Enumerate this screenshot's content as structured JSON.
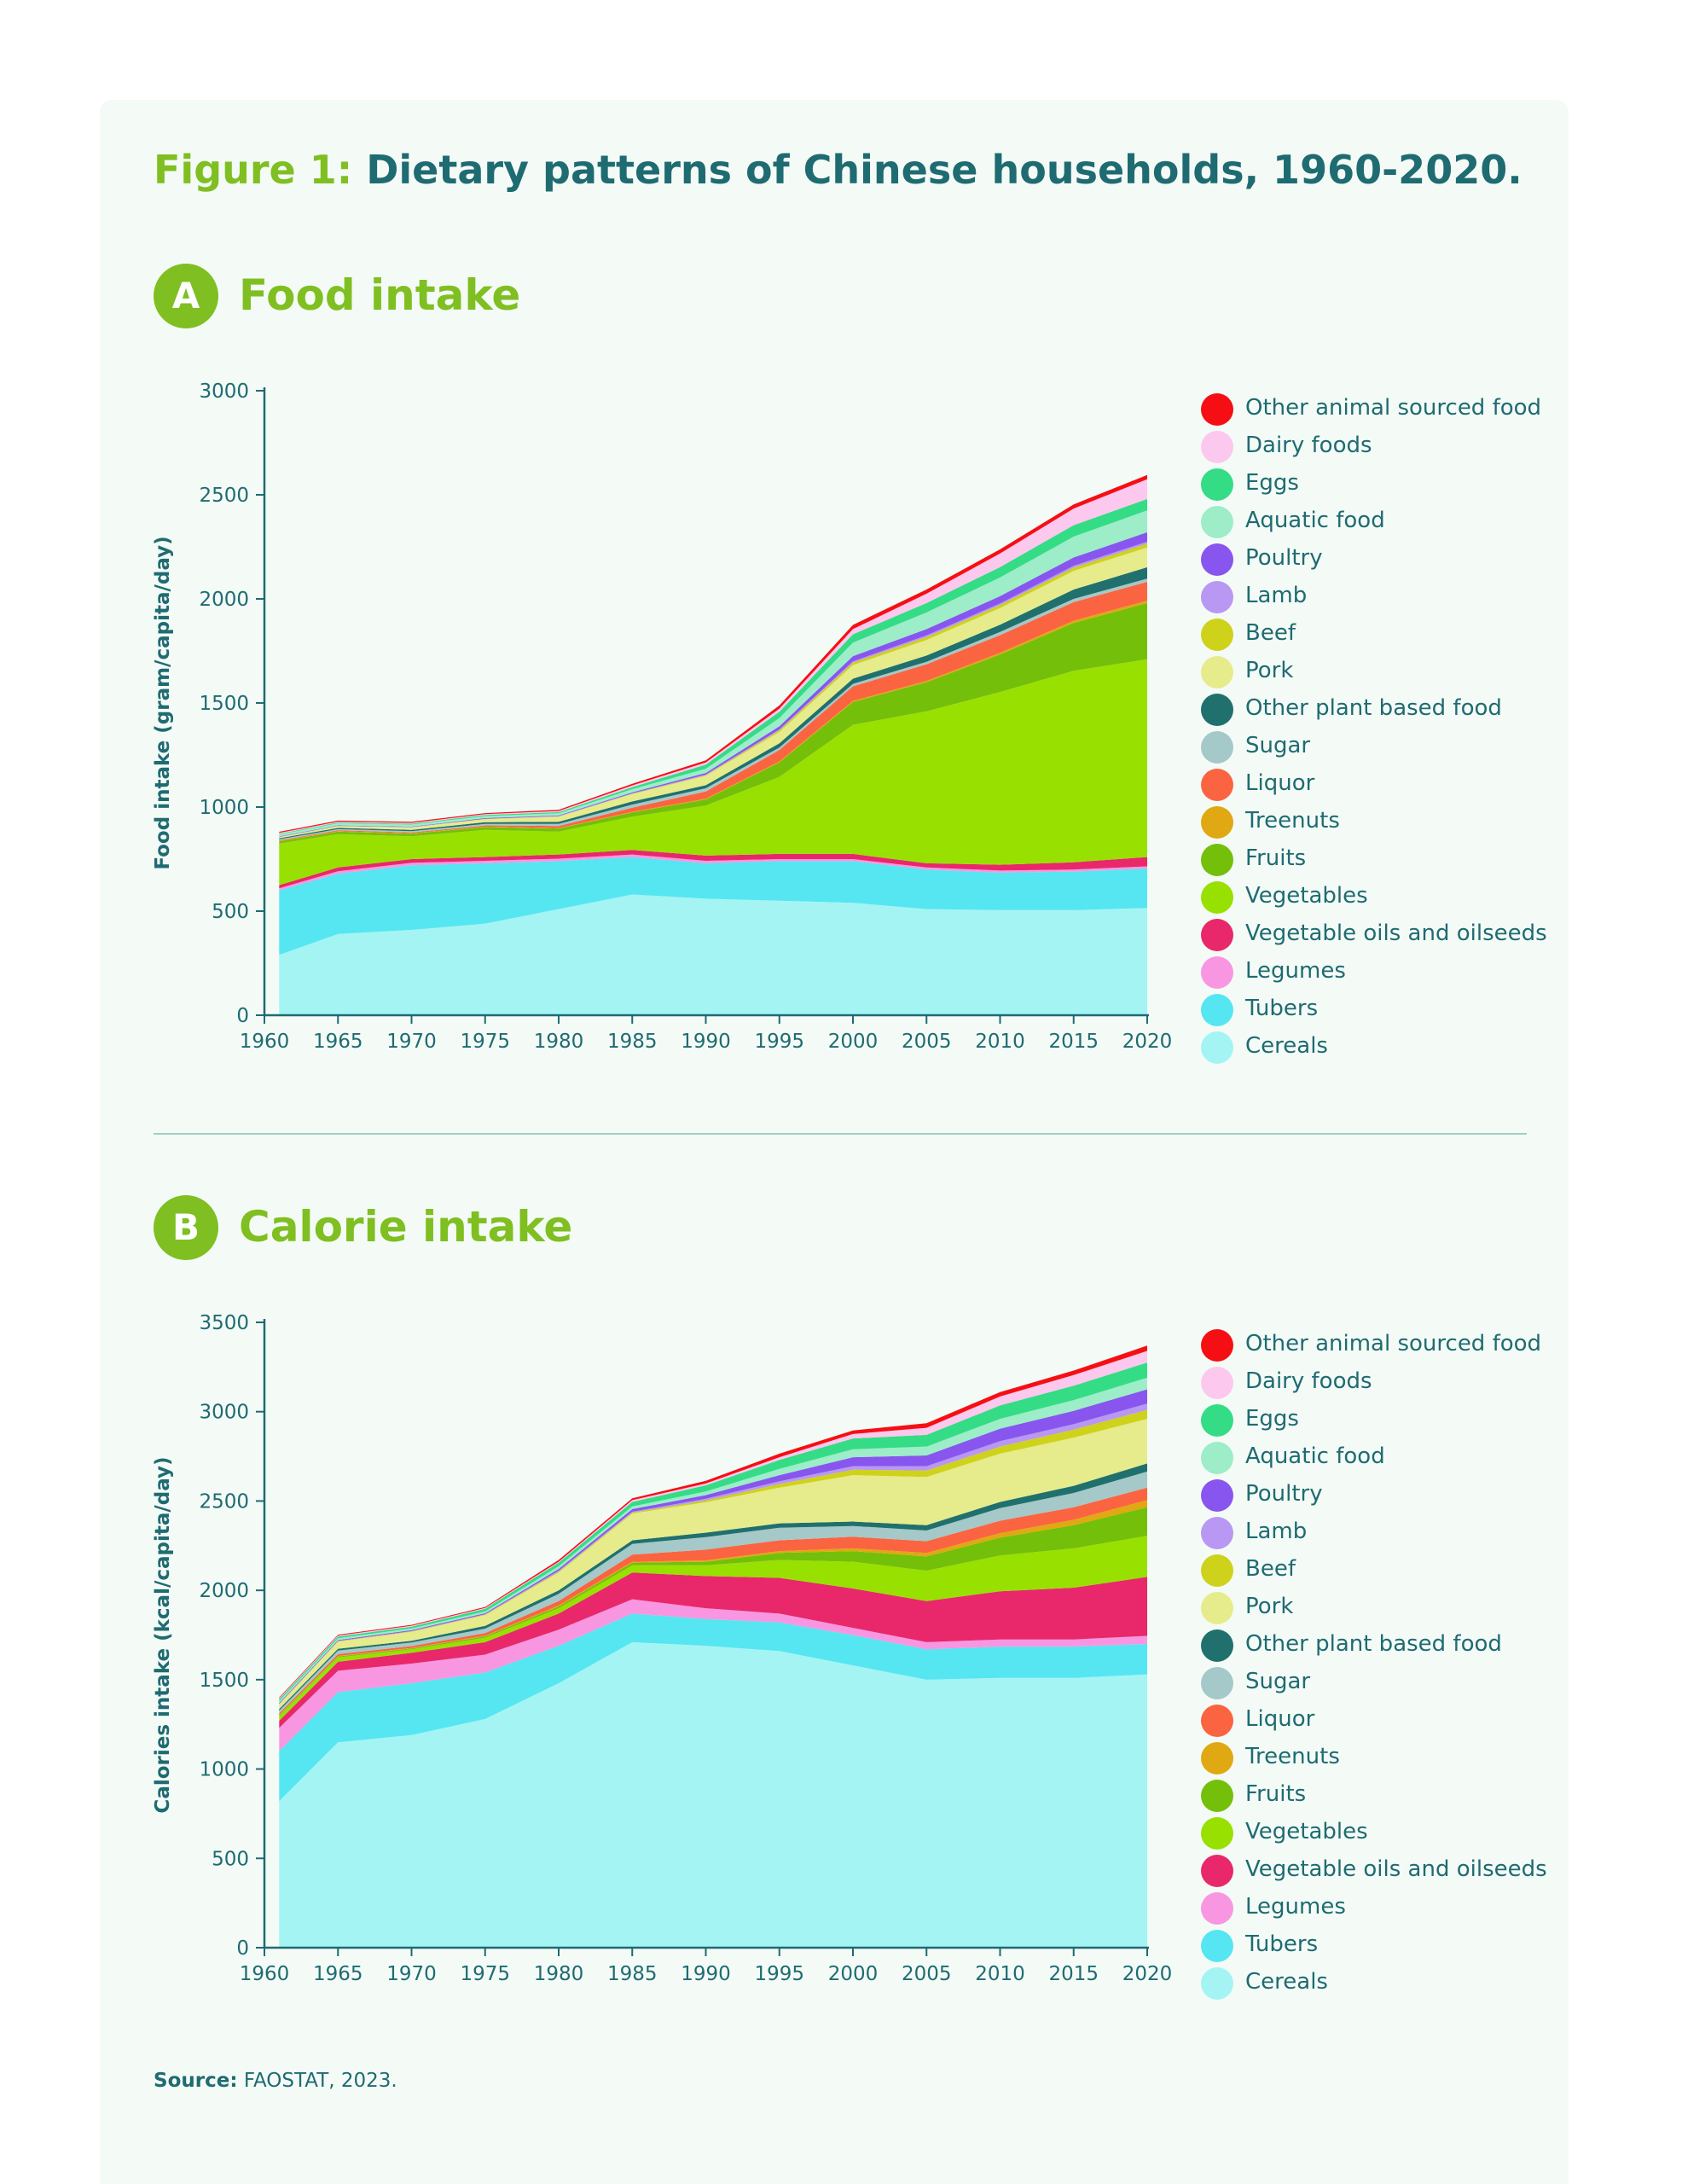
{
  "figure": {
    "prefix": "Figure 1:",
    "title": "Dietary patterns of Chinese households, 1960-2020."
  },
  "source": {
    "label": "Source:",
    "text": "FAOSTAT, 2023."
  },
  "categories": [
    {
      "name": "Cereals",
      "color": "#a4f4f4"
    },
    {
      "name": "Tubers",
      "color": "#55e6f2"
    },
    {
      "name": "Legumes",
      "color": "#f996e2"
    },
    {
      "name": "Vegetable oils and oilseeds",
      "color": "#e8286a"
    },
    {
      "name": "Vegetables",
      "color": "#98e000"
    },
    {
      "name": "Fruits",
      "color": "#74bf0a"
    },
    {
      "name": "Treenuts",
      "color": "#e0a812"
    },
    {
      "name": "Liquor",
      "color": "#fb6441"
    },
    {
      "name": "Sugar",
      "color": "#a5c8c8"
    },
    {
      "name": "Other plant based food",
      "color": "#20706e"
    },
    {
      "name": "Pork",
      "color": "#e6eb8c"
    },
    {
      "name": "Beef",
      "color": "#cfd21a"
    },
    {
      "name": "Lamb",
      "color": "#b898f2"
    },
    {
      "name": "Poultry",
      "color": "#8856ee"
    },
    {
      "name": "Aquatic food",
      "color": "#9cedc8"
    },
    {
      "name": "Eggs",
      "color": "#34dc86"
    },
    {
      "name": "Dairy foods",
      "color": "#fcc8ee"
    },
    {
      "name": "Other animal sourced food",
      "color": "#f50f14"
    }
  ],
  "chart_data": [
    {
      "type": "area",
      "stacked": true,
      "badge": "A",
      "title": "Food intake",
      "ylabel": "Food intake (gram/capita/day)",
      "xlabel": "",
      "xlim": [
        1960,
        2020
      ],
      "ylim": [
        0,
        3000
      ],
      "xticks": [
        1960,
        1965,
        1970,
        1975,
        1980,
        1985,
        1990,
        1995,
        2000,
        2005,
        2010,
        2015,
        2020
      ],
      "yticks": [
        0,
        500,
        1000,
        1500,
        2000,
        2500,
        3000
      ],
      "legend": "right",
      "x": [
        1961,
        1965,
        1970,
        1975,
        1980,
        1985,
        1990,
        1995,
        2000,
        2005,
        2010,
        2015,
        2020
      ],
      "series": [
        {
          "name": "Cereals",
          "values": [
            290,
            390,
            410,
            440,
            510,
            580,
            560,
            550,
            540,
            510,
            505,
            505,
            515
          ]
        },
        {
          "name": "Tubers",
          "values": [
            310,
            290,
            310,
            290,
            230,
            180,
            170,
            190,
            200,
            190,
            180,
            185,
            190
          ]
        },
        {
          "name": "Legumes",
          "values": [
            10,
            12,
            12,
            12,
            12,
            12,
            12,
            10,
            10,
            10,
            10,
            10,
            10
          ]
        },
        {
          "name": "Vegetable oils and oilseeds",
          "values": [
            15,
            18,
            18,
            18,
            20,
            22,
            25,
            25,
            25,
            20,
            28,
            35,
            45
          ]
        },
        {
          "name": "Vegetables",
          "values": [
            200,
            160,
            110,
            130,
            110,
            160,
            240,
            370,
            620,
            730,
            830,
            920,
            950
          ]
        },
        {
          "name": "Fruits",
          "values": [
            10,
            12,
            12,
            14,
            15,
            20,
            30,
            70,
            110,
            140,
            180,
            230,
            270
          ]
        },
        {
          "name": "Treenuts",
          "values": [
            2,
            2,
            2,
            2,
            2,
            3,
            3,
            4,
            5,
            6,
            8,
            10,
            12
          ]
        },
        {
          "name": "Liquor",
          "values": [
            3,
            4,
            4,
            6,
            10,
            20,
            35,
            55,
            70,
            80,
            85,
            90,
            90
          ]
        },
        {
          "name": "Sugar",
          "values": [
            5,
            6,
            6,
            7,
            10,
            15,
            15,
            12,
            12,
            12,
            15,
            15,
            15
          ]
        },
        {
          "name": "Other plant based food",
          "values": [
            5,
            6,
            6,
            8,
            10,
            15,
            15,
            20,
            25,
            30,
            35,
            45,
            55
          ]
        },
        {
          "name": "Pork",
          "values": [
            5,
            8,
            12,
            15,
            25,
            35,
            45,
            55,
            65,
            75,
            80,
            90,
            95
          ]
        },
        {
          "name": "Beef",
          "values": [
            1,
            1,
            1,
            1,
            1,
            2,
            3,
            8,
            12,
            14,
            14,
            15,
            18
          ]
        },
        {
          "name": "Lamb",
          "values": [
            1,
            1,
            1,
            1,
            2,
            2,
            3,
            4,
            6,
            8,
            8,
            9,
            10
          ]
        },
        {
          "name": "Poultry",
          "values": [
            2,
            2,
            2,
            3,
            3,
            5,
            8,
            15,
            25,
            30,
            35,
            40,
            45
          ]
        },
        {
          "name": "Aquatic food",
          "values": [
            10,
            10,
            10,
            10,
            10,
            15,
            20,
            40,
            65,
            80,
            90,
            100,
            105
          ]
        },
        {
          "name": "Eggs",
          "values": [
            3,
            4,
            4,
            5,
            6,
            10,
            20,
            30,
            40,
            45,
            50,
            55,
            55
          ]
        },
        {
          "name": "Dairy foods",
          "values": [
            4,
            4,
            4,
            4,
            5,
            8,
            10,
            15,
            25,
            45,
            65,
            80,
            95
          ]
        },
        {
          "name": "Other animal sourced food",
          "values": [
            5,
            5,
            5,
            5,
            6,
            8,
            10,
            15,
            20,
            20,
            20,
            20,
            20
          ]
        }
      ]
    },
    {
      "type": "area",
      "stacked": true,
      "badge": "B",
      "title": "Calorie intake",
      "ylabel": "Calories intake (kcal/capita/day)",
      "xlabel": "",
      "xlim": [
        1960,
        2020
      ],
      "ylim": [
        0,
        3500
      ],
      "xticks": [
        1960,
        1965,
        1970,
        1975,
        1980,
        1985,
        1990,
        1995,
        2000,
        2005,
        2010,
        2015,
        2020
      ],
      "yticks": [
        0,
        500,
        1000,
        1500,
        2000,
        2500,
        3000,
        3500
      ],
      "legend": "right",
      "x": [
        1961,
        1965,
        1970,
        1975,
        1980,
        1985,
        1990,
        1995,
        2000,
        2005,
        2010,
        2015,
        2020
      ],
      "series": [
        {
          "name": "Cereals",
          "values": [
            820,
            1150,
            1190,
            1280,
            1480,
            1710,
            1690,
            1660,
            1580,
            1500,
            1510,
            1510,
            1530
          ]
        },
        {
          "name": "Tubers",
          "values": [
            280,
            280,
            290,
            260,
            210,
            160,
            150,
            160,
            170,
            170,
            175,
            175,
            170
          ]
        },
        {
          "name": "Legumes",
          "values": [
            130,
            120,
            110,
            100,
            90,
            80,
            60,
            50,
            40,
            40,
            40,
            40,
            45
          ]
        },
        {
          "name": "Vegetable oils and oilseeds",
          "values": [
            40,
            50,
            60,
            70,
            90,
            150,
            180,
            200,
            220,
            230,
            270,
            290,
            330
          ]
        },
        {
          "name": "Vegetables",
          "values": [
            25,
            25,
            20,
            25,
            30,
            40,
            60,
            100,
            150,
            170,
            200,
            220,
            230
          ]
        },
        {
          "name": "Fruits",
          "values": [
            5,
            5,
            5,
            8,
            10,
            15,
            20,
            40,
            60,
            80,
            100,
            130,
            160
          ]
        },
        {
          "name": "Treenuts",
          "values": [
            3,
            3,
            3,
            3,
            5,
            5,
            8,
            10,
            15,
            20,
            25,
            30,
            40
          ]
        },
        {
          "name": "Liquor",
          "values": [
            8,
            10,
            10,
            15,
            25,
            40,
            60,
            60,
            65,
            65,
            70,
            70,
            70
          ]
        },
        {
          "name": "Sugar",
          "values": [
            15,
            20,
            20,
            25,
            40,
            60,
            70,
            70,
            60,
            60,
            70,
            80,
            90
          ]
        },
        {
          "name": "Other plant based food",
          "values": [
            10,
            10,
            10,
            15,
            20,
            20,
            25,
            25,
            25,
            30,
            35,
            40,
            45
          ]
        },
        {
          "name": "Pork",
          "values": [
            25,
            40,
            50,
            60,
            100,
            150,
            170,
            200,
            260,
            270,
            270,
            270,
            250
          ]
        },
        {
          "name": "Beef",
          "values": [
            2,
            2,
            2,
            3,
            5,
            5,
            10,
            20,
            30,
            35,
            40,
            45,
            50
          ]
        },
        {
          "name": "Lamb",
          "values": [
            2,
            2,
            2,
            3,
            5,
            5,
            10,
            15,
            20,
            25,
            30,
            30,
            35
          ]
        },
        {
          "name": "Poultry",
          "values": [
            5,
            5,
            5,
            5,
            10,
            15,
            20,
            35,
            50,
            60,
            70,
            75,
            80
          ]
        },
        {
          "name": "Aquatic food",
          "values": [
            10,
            10,
            10,
            10,
            15,
            15,
            20,
            35,
            45,
            50,
            55,
            60,
            65
          ]
        },
        {
          "name": "Eggs",
          "values": [
            10,
            10,
            10,
            15,
            20,
            25,
            35,
            50,
            60,
            65,
            75,
            80,
            85
          ]
        },
        {
          "name": "Dairy foods",
          "values": [
            5,
            5,
            5,
            5,
            5,
            10,
            10,
            15,
            25,
            40,
            50,
            60,
            65
          ]
        },
        {
          "name": "Other animal sourced food",
          "values": [
            5,
            5,
            5,
            5,
            10,
            10,
            15,
            20,
            20,
            25,
            25,
            25,
            30
          ]
        }
      ]
    }
  ]
}
